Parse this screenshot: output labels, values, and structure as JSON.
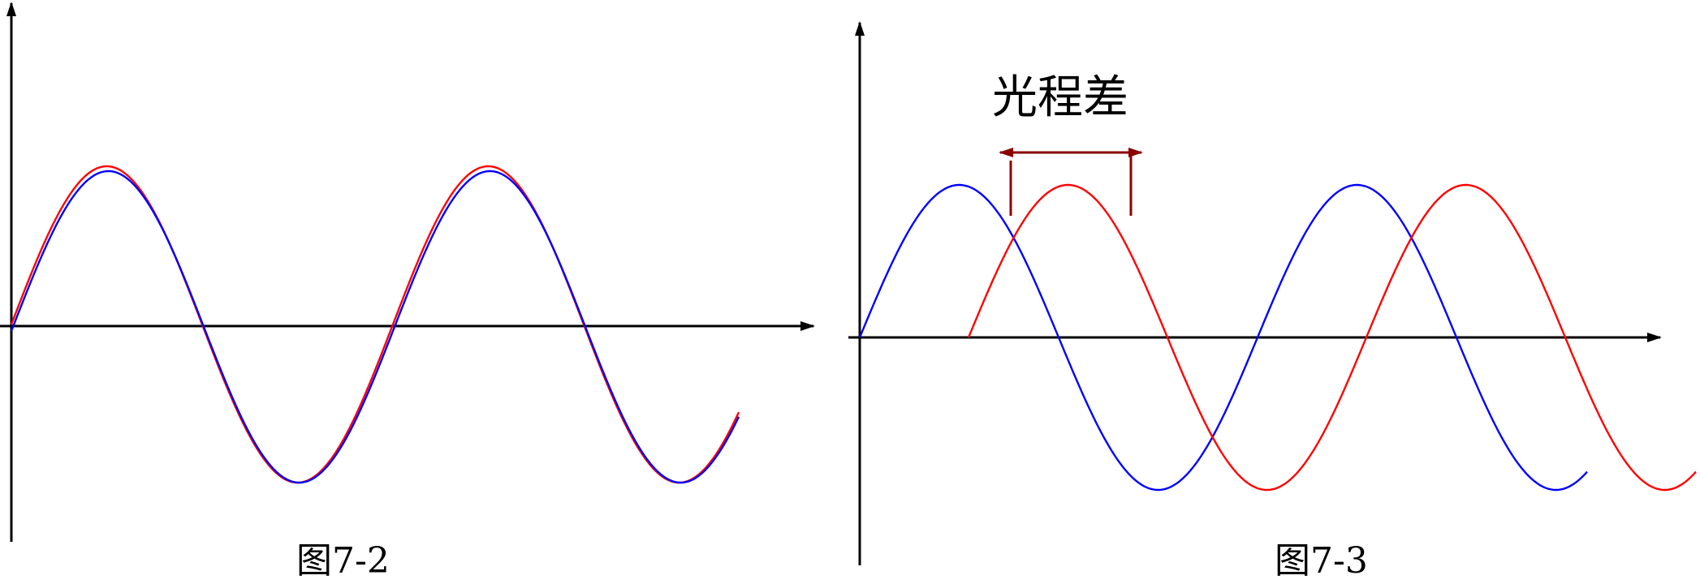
{
  "figures": [
    {
      "caption": "图7-2",
      "waves": [
        {
          "color": "#ff0000"
        },
        {
          "color": "#0000ff"
        }
      ]
    },
    {
      "caption": "图7-3",
      "annotation": "光程差",
      "waves": [
        {
          "color": "#0000ff"
        },
        {
          "color": "#ff0000"
        }
      ]
    }
  ],
  "colors": {
    "axis": "#000000",
    "path_difference_marker": "#8b0000"
  }
}
